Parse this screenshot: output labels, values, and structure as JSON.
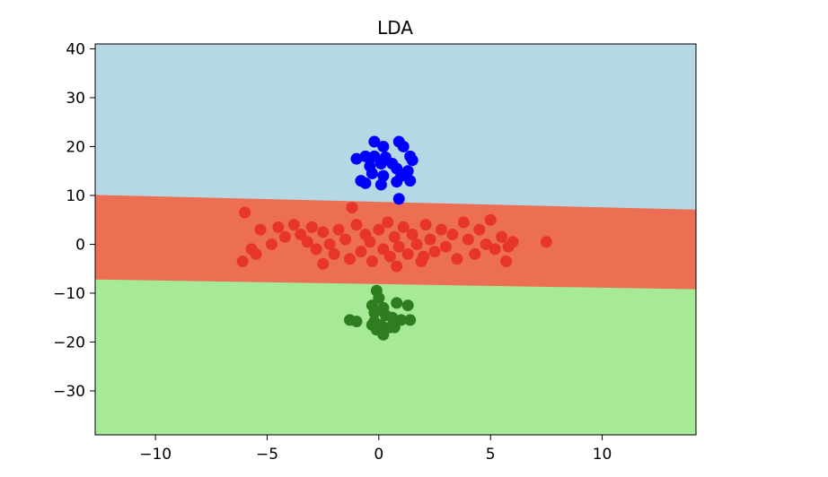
{
  "chart_data": {
    "type": "scatter",
    "title": "LDA",
    "xlabel": "",
    "ylabel": "",
    "xlim": [
      -12.7,
      14.2
    ],
    "ylim": [
      -39,
      41
    ],
    "xticks": [
      -10,
      -5,
      0,
      5,
      10
    ],
    "yticks": [
      -30,
      -20,
      -10,
      0,
      10,
      20,
      30,
      40
    ],
    "xtick_labels": [
      "−10",
      "−5",
      "0",
      "5",
      "10"
    ],
    "ytick_labels": [
      "−30",
      "−20",
      "−10",
      "0",
      "10",
      "20",
      "30",
      "40"
    ],
    "grid": false,
    "legend": "none",
    "decision_regions": [
      {
        "name": "upper",
        "color": "#b6d8e4",
        "lower_boundary": [
          [
            -12.7,
            10.1
          ],
          [
            14.2,
            7.1
          ]
        ]
      },
      {
        "name": "middle",
        "color": "#ec6f53",
        "lower_boundary": [
          [
            -12.7,
            -7.2
          ],
          [
            14.2,
            -9.2
          ]
        ]
      },
      {
        "name": "lower",
        "color": "#a6e996"
      }
    ],
    "series": [
      {
        "color": "#0000ff",
        "points": [
          [
            -0.2,
            21
          ],
          [
            0.2,
            20
          ],
          [
            0.9,
            21
          ],
          [
            1.1,
            20
          ],
          [
            -0.6,
            18
          ],
          [
            -0.2,
            18
          ],
          [
            0.3,
            17.8
          ],
          [
            1.4,
            18
          ],
          [
            -1.0,
            17.5
          ],
          [
            0.6,
            16.5
          ],
          [
            1.5,
            17.2
          ],
          [
            -0.4,
            16
          ],
          [
            0.1,
            16.5
          ],
          [
            0.8,
            15.5
          ],
          [
            1.3,
            15
          ],
          [
            -0.3,
            14.5
          ],
          [
            0.2,
            14
          ],
          [
            1.0,
            14
          ],
          [
            -0.8,
            13
          ],
          [
            -0.6,
            12.5
          ],
          [
            0.1,
            12.2
          ],
          [
            0.8,
            12.8
          ],
          [
            1.4,
            13
          ],
          [
            0.9,
            9.3
          ]
        ]
      },
      {
        "color": "#e8352a",
        "points": [
          [
            -6.0,
            6.5
          ],
          [
            -5.3,
            3
          ],
          [
            -4.5,
            3.5
          ],
          [
            -4.2,
            1.5
          ],
          [
            -3.8,
            4
          ],
          [
            -3.5,
            2
          ],
          [
            -3.2,
            0.5
          ],
          [
            -3.0,
            3.5
          ],
          [
            -2.8,
            -1
          ],
          [
            -2.5,
            2.5
          ],
          [
            -2.2,
            0
          ],
          [
            -2.0,
            -2
          ],
          [
            -1.8,
            3
          ],
          [
            -1.5,
            1
          ],
          [
            -1.3,
            -3
          ],
          [
            -1.2,
            7.5
          ],
          [
            -1.0,
            4
          ],
          [
            -0.8,
            -1.5
          ],
          [
            -0.6,
            2
          ],
          [
            -0.4,
            0.5
          ],
          [
            -0.3,
            -3.5
          ],
          [
            0,
            3
          ],
          [
            0.2,
            -1
          ],
          [
            0.4,
            4.5
          ],
          [
            0.5,
            -2.5
          ],
          [
            0.7,
            1.5
          ],
          [
            0.9,
            -0.5
          ],
          [
            1.1,
            3.5
          ],
          [
            1.3,
            -2
          ],
          [
            1.5,
            2
          ],
          [
            1.7,
            0
          ],
          [
            1.9,
            -3.5
          ],
          [
            2.1,
            4
          ],
          [
            2.3,
            1
          ],
          [
            2.5,
            -1.5
          ],
          [
            2.8,
            3
          ],
          [
            3.0,
            -0.5
          ],
          [
            3.3,
            2
          ],
          [
            3.5,
            -3
          ],
          [
            3.8,
            4.5
          ],
          [
            4.0,
            1
          ],
          [
            4.3,
            -2
          ],
          [
            4.5,
            3
          ],
          [
            4.8,
            0
          ],
          [
            5.0,
            5
          ],
          [
            5.2,
            -1
          ],
          [
            5.5,
            1.5
          ],
          [
            5.8,
            -0.5
          ],
          [
            5.7,
            -3.5
          ],
          [
            6.0,
            0.5
          ],
          [
            7.5,
            0.5
          ],
          [
            -6.1,
            -3.5
          ],
          [
            -5.5,
            -2
          ],
          [
            -5.7,
            -1
          ],
          [
            -4.8,
            0
          ],
          [
            -2.5,
            -4
          ],
          [
            0.8,
            -4.5
          ],
          [
            2.0,
            -2.5
          ]
        ]
      },
      {
        "color": "#2e7d1f",
        "points": [
          [
            -0.1,
            -9.5
          ],
          [
            0,
            -11
          ],
          [
            -0.3,
            -12.5
          ],
          [
            0.2,
            -13
          ],
          [
            0.8,
            -12
          ],
          [
            1.3,
            -12.5
          ],
          [
            -0.2,
            -14
          ],
          [
            0.3,
            -14.5
          ],
          [
            0.6,
            -15
          ],
          [
            1.0,
            -15.5
          ],
          [
            1.4,
            -15.5
          ],
          [
            -1.3,
            -15.5
          ],
          [
            -1.0,
            -15.8
          ],
          [
            -0.2,
            -15.8
          ],
          [
            0.1,
            -16.5
          ],
          [
            0.5,
            -17
          ],
          [
            -0.1,
            -17.5
          ],
          [
            0.2,
            -18.5
          ],
          [
            0.7,
            -17
          ],
          [
            -0.3,
            -16.5
          ]
        ]
      }
    ]
  }
}
